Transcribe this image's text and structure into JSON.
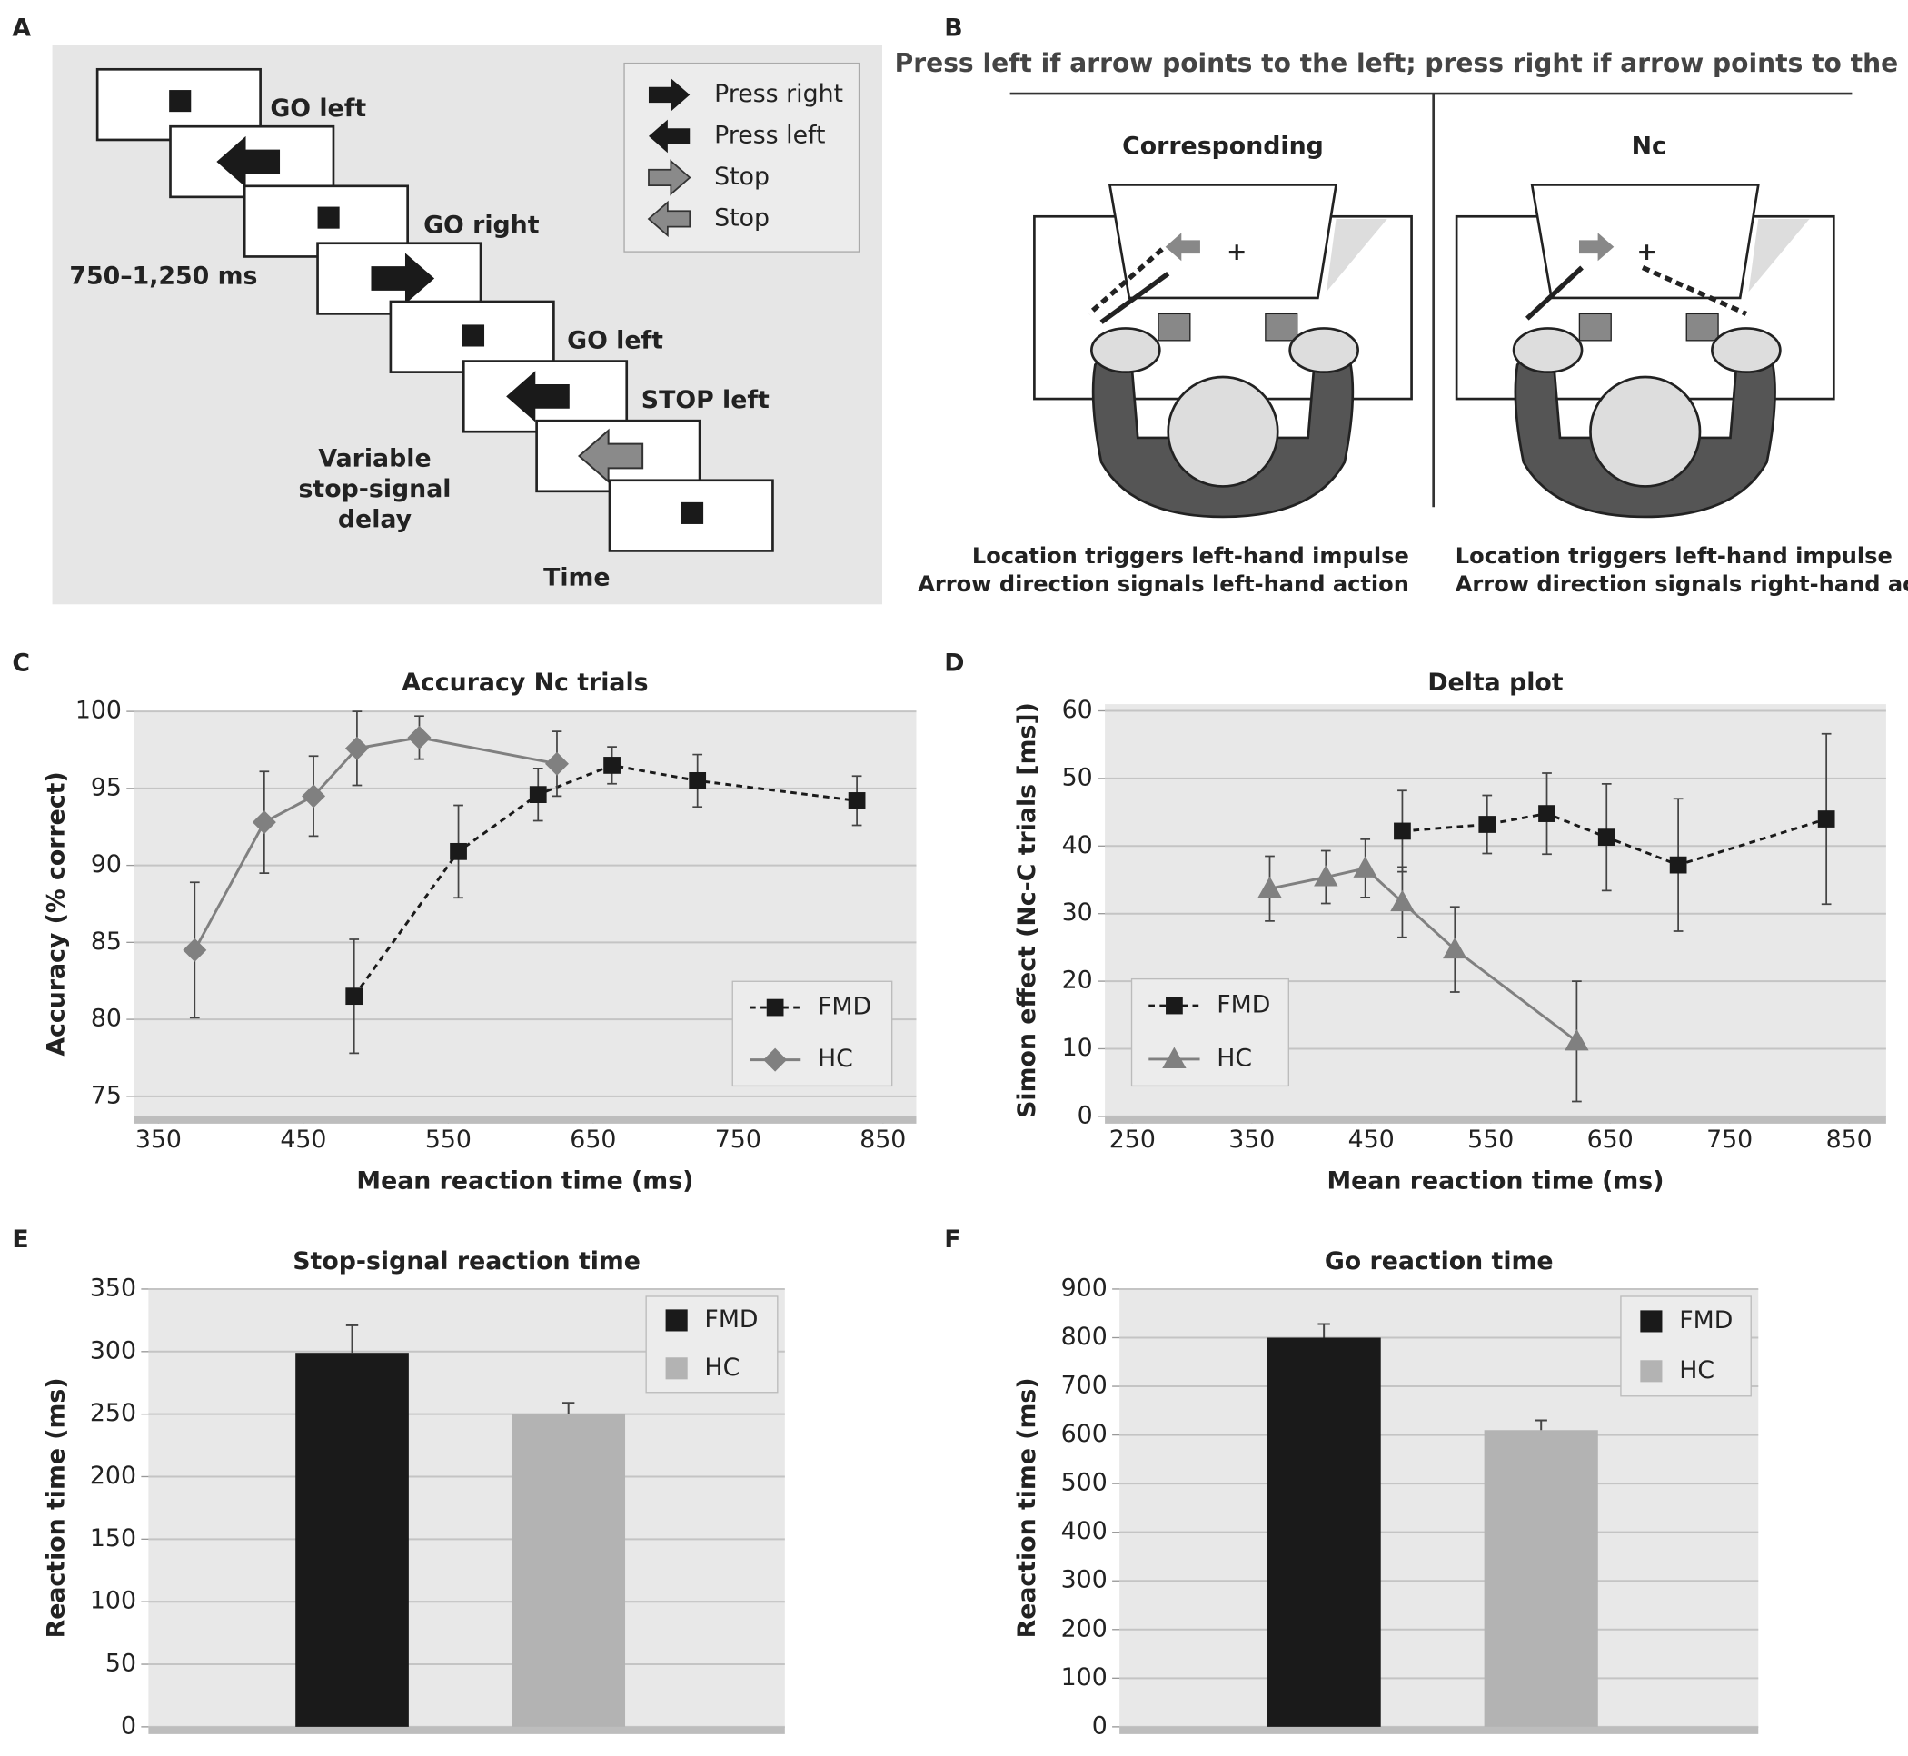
{
  "panel_labels": [
    "A",
    "B",
    "C",
    "D",
    "E",
    "F"
  ],
  "diagram_a": {
    "labels": [
      "GO left",
      "GO right",
      "750–1,250 ms",
      "GO left",
      "STOP left"
    ],
    "delay_label": [
      "Variable",
      "stop-signal",
      "delay"
    ],
    "time_label": "Time",
    "legend": [
      "Press right",
      "Press left",
      "Stop",
      "Stop"
    ]
  },
  "diagram_b": {
    "instruction": "Press left if arrow points to the left; press right if arrow points to the right",
    "conditions": [
      {
        "title": "Corresponding",
        "captions": [
          "Location triggers left-hand impulse",
          "Arrow direction signals left-hand action"
        ]
      },
      {
        "title": "Nc",
        "captions": [
          "Location triggers left-hand impulse",
          "Arrow direction signals right-hand action"
        ]
      }
    ]
  },
  "chart_data": [
    {
      "type": "line",
      "title": "Accuracy Nc trials",
      "x_label": "Mean reaction time (ms)",
      "y_label": "Accuracy (% correct)",
      "xlim": [
        333,
        873
      ],
      "xticks": [
        350,
        450,
        550,
        650,
        750,
        850
      ],
      "ylim": [
        73.7,
        100
      ],
      "yticks": [
        75,
        80,
        85,
        90,
        95,
        100
      ],
      "grid": true,
      "legend": "lower right",
      "series": [
        {
          "name": "FMD",
          "color": "#1a1a1a",
          "line_style": "dashed",
          "marker": "square",
          "x": [
            485,
            557,
            612,
            663,
            722,
            832
          ],
          "values": [
            81.5,
            90.9,
            94.6,
            96.5,
            95.5,
            94.2
          ],
          "errors": [
            3.7,
            3.0,
            1.7,
            1.2,
            1.7,
            1.6
          ]
        },
        {
          "name": "HC",
          "color": "#808080",
          "line_style": "solid",
          "marker": "diamond",
          "x": [
            375,
            423,
            457,
            487,
            530,
            625
          ],
          "values": [
            84.5,
            92.8,
            94.5,
            97.6,
            98.3,
            96.6
          ],
          "errors": [
            4.4,
            3.3,
            2.6,
            2.4,
            1.4,
            2.1
          ]
        }
      ]
    },
    {
      "type": "line",
      "title": "Delta plot",
      "x_label": "Mean reaction time (ms)",
      "y_label": "Simon effect (Nc-C trials [ms])",
      "xlim": [
        227,
        881
      ],
      "xticks": [
        250,
        350,
        450,
        550,
        650,
        750,
        850
      ],
      "ylim": [
        0,
        61
      ],
      "yticks": [
        0,
        10,
        20,
        30,
        40,
        50,
        60
      ],
      "grid": true,
      "legend": "lower left",
      "series": [
        {
          "name": "FMD",
          "color": "#1a1a1a",
          "line_style": "dashed",
          "marker": "square",
          "x": [
            476,
            547,
            597,
            647,
            707,
            831
          ],
          "values": [
            42.2,
            43.2,
            44.8,
            41.3,
            37.2,
            44.0
          ],
          "errors": [
            6.0,
            4.3,
            6.0,
            7.9,
            9.8,
            12.6
          ]
        },
        {
          "name": "HC",
          "color": "#808080",
          "line_style": "solid",
          "marker": "triangle",
          "x": [
            365,
            412,
            445,
            476,
            520,
            622
          ],
          "values": [
            33.7,
            35.4,
            36.7,
            31.7,
            24.7,
            11.1
          ],
          "errors": [
            4.8,
            3.9,
            4.3,
            5.2,
            6.3,
            8.9
          ]
        }
      ]
    },
    {
      "type": "bar",
      "title": "Stop-signal reaction time",
      "y_label": "Reaction time (ms)",
      "categories": [
        null
      ],
      "ylim": [
        0,
        350
      ],
      "yticks": [
        0,
        50,
        100,
        150,
        200,
        250,
        300,
        350
      ],
      "grid": true,
      "legend": "upper right",
      "series": [
        {
          "name": "FMD",
          "color": "#1a1a1a",
          "values": [
            299
          ],
          "errors": [
            22
          ]
        },
        {
          "name": "HC",
          "color": "#b3b3b3",
          "values": [
            250
          ],
          "errors": [
            9
          ]
        }
      ]
    },
    {
      "type": "bar",
      "title": "Go reaction time",
      "y_label": "Reaction time (ms)",
      "categories": [
        null
      ],
      "ylim": [
        0,
        900
      ],
      "yticks": [
        0,
        100,
        200,
        300,
        400,
        500,
        600,
        700,
        800,
        900
      ],
      "grid": true,
      "legend": "upper right",
      "series": [
        {
          "name": "FMD",
          "color": "#1a1a1a",
          "values": [
            800
          ],
          "errors": [
            28
          ]
        },
        {
          "name": "HC",
          "color": "#b3b3b3",
          "values": [
            610
          ],
          "errors": [
            20
          ]
        }
      ]
    }
  ]
}
